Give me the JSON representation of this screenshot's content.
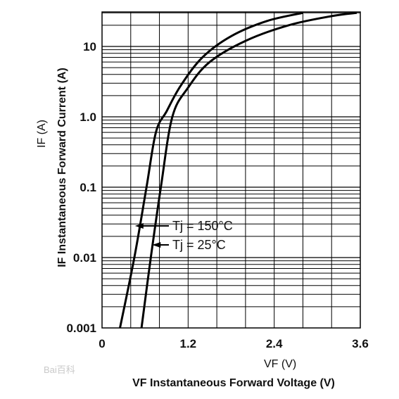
{
  "chart_data": {
    "type": "line",
    "x_scale": "linear",
    "y_scale": "log",
    "xlim": [
      0,
      3.6
    ],
    "ylim": [
      0.001,
      30
    ],
    "x_ticks": [
      "0",
      "1.2",
      "2.4",
      "3.6"
    ],
    "y_ticks": [
      "0.001",
      "0.01",
      "0.1",
      "1.0",
      "10"
    ],
    "xlabel_unit": "VF (V)",
    "xlabel": "VF  Instantaneous Forward Voltage (V)",
    "ylabel_unit": "IF (A)",
    "ylabel": "IF  Instantaneous Forward Current (A)",
    "grid": true,
    "series": [
      {
        "name": "Tj = 150°C",
        "x": [
          0.25,
          0.45,
          0.62,
          0.75,
          0.9,
          1.1,
          1.4,
          1.8,
          2.3,
          2.8
        ],
        "y": [
          0.001,
          0.01,
          0.1,
          0.6,
          1.2,
          2.8,
          7,
          14,
          23,
          30
        ]
      },
      {
        "name": "Tj = 25°C",
        "x": [
          0.55,
          0.68,
          0.82,
          0.98,
          1.2,
          1.5,
          2.0,
          2.6,
          3.2,
          3.55
        ],
        "y": [
          0.001,
          0.01,
          0.1,
          1.0,
          2.6,
          6,
          12,
          20,
          27,
          30
        ]
      }
    ],
    "annotations": [
      {
        "text": "Tj = 150°C",
        "series": 0
      },
      {
        "text": "Tj = 25°C",
        "series": 1
      }
    ]
  },
  "watermark": "Bai百科"
}
